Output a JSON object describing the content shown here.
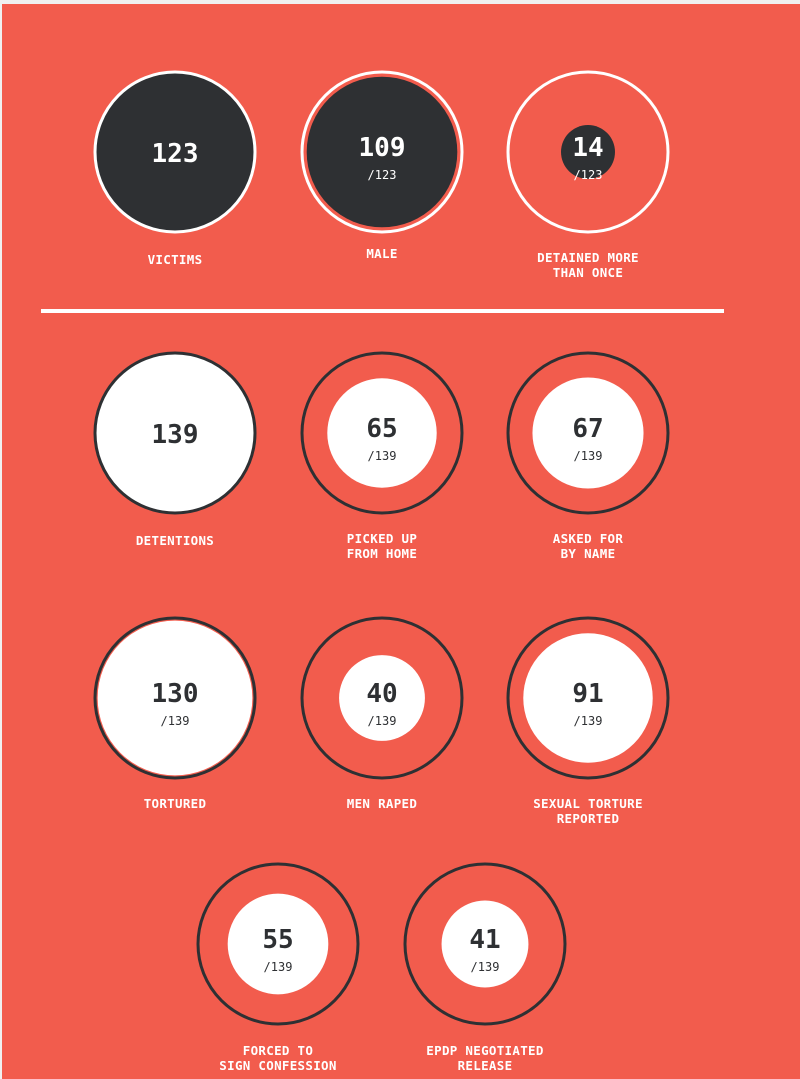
{
  "colors": {
    "background": "#f25c4d",
    "dark": "#2e3033",
    "white": "#ffffff"
  },
  "chart_data": {
    "type": "proportional-circles",
    "sections": [
      {
        "total": 123,
        "items": [
          {
            "key": "victims",
            "value": 123,
            "total": 123,
            "show_total": false,
            "label": "VICTIMS"
          },
          {
            "key": "male",
            "value": 109,
            "total": 123,
            "show_total": true,
            "label": "MALE"
          },
          {
            "key": "detained_more_than_once",
            "value": 14,
            "total": 123,
            "show_total": true,
            "label": "DETAINED MORE\nTHAN ONCE"
          }
        ]
      },
      {
        "total": 139,
        "items": [
          {
            "key": "detentions",
            "value": 139,
            "total": 139,
            "show_total": false,
            "label": "DETENTIONS"
          },
          {
            "key": "picked_up_from_home",
            "value": 65,
            "total": 139,
            "show_total": true,
            "label": "PICKED UP\nFROM HOME"
          },
          {
            "key": "asked_for_by_name",
            "value": 67,
            "total": 139,
            "show_total": true,
            "label": "ASKED FOR\nBY NAME"
          },
          {
            "key": "tortured",
            "value": 130,
            "total": 139,
            "show_total": true,
            "label": "TORTURED"
          },
          {
            "key": "men_raped",
            "value": 40,
            "total": 139,
            "show_total": true,
            "label": "MEN RAPED"
          },
          {
            "key": "sexual_torture_reported",
            "value": 91,
            "total": 139,
            "show_total": true,
            "label": "SEXUAL TORTURE\nREPORTED"
          },
          {
            "key": "forced_to_sign_confession",
            "value": 55,
            "total": 139,
            "show_total": true,
            "label": "FORCED TO\nSIGN CONFESSION"
          },
          {
            "key": "epdp_negotiated_release",
            "value": 41,
            "total": 139,
            "show_total": true,
            "label": "EPDP NEGOTIATED\nRELEASE"
          }
        ]
      }
    ]
  }
}
